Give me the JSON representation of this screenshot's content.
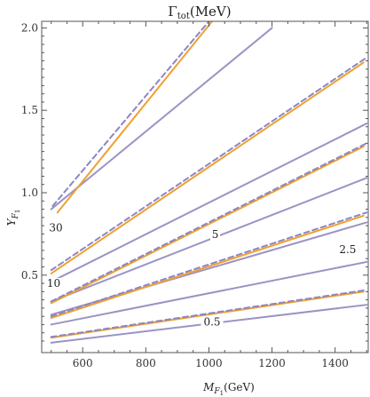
{
  "chart_data": {
    "type": "line",
    "title": "Γtot(MeV)",
    "title_parts": {
      "symbol": "Γ",
      "subscript": "tot",
      "unit": "(MeV)"
    },
    "xlabel": "MF1(GeV)",
    "xlabel_parts": {
      "symbol": "M",
      "subscript": "F",
      "subsubscript": "1",
      "unit": "(GeV)"
    },
    "ylabel": "YF1",
    "ylabel_parts": {
      "symbol": "Y",
      "subscript": "F",
      "subsubscript": "1"
    },
    "xlim": [
      470,
      1505
    ],
    "ylim": [
      0.03,
      2.04
    ],
    "xticks": [
      "600",
      "800",
      "1000",
      "1200",
      "1400"
    ],
    "yticks": [
      "0.5",
      "1.0",
      "1.5",
      "2.0"
    ],
    "grid": false,
    "colors": {
      "contour": "#9b93c4",
      "orange": "#f0a030",
      "dashed": "#8c86c4",
      "frame": "#555555"
    },
    "contours": [
      {
        "x": [
          500,
          1200
        ],
        "y": [
          0.9,
          2.0
        ]
      },
      {
        "x": [
          500,
          1500
        ],
        "y": [
          0.46,
          1.42
        ]
      },
      {
        "x": [
          500,
          1500
        ],
        "y": [
          0.34,
          1.09
        ]
      },
      {
        "x": [
          500,
          1500
        ],
        "y": [
          0.26,
          0.82
        ]
      },
      {
        "x": [
          500,
          1500
        ],
        "y": [
          0.2,
          0.58
        ]
      },
      {
        "x": [
          500,
          1500
        ],
        "y": [
          0.09,
          0.32
        ]
      }
    ],
    "orange_solid": [
      {
        "x": [
          520,
          1010
        ],
        "y": [
          0.88,
          2.04
        ]
      },
      {
        "x": [
          500,
          1490
        ],
        "y": [
          0.51,
          1.79
        ]
      },
      {
        "x": [
          500,
          1490
        ],
        "y": [
          0.33,
          1.28
        ]
      },
      {
        "x": [
          500,
          1490
        ],
        "y": [
          0.24,
          0.86
        ]
      },
      {
        "x": [
          500,
          1490
        ],
        "y": [
          0.12,
          0.4
        ]
      }
    ],
    "orange_dashed": [
      {
        "x": [
          505,
          1000
        ],
        "y": [
          0.92,
          2.04
        ]
      },
      {
        "x": [
          500,
          1500
        ],
        "y": [
          0.53,
          1.82
        ]
      },
      {
        "x": [
          500,
          1500
        ],
        "y": [
          0.34,
          1.3
        ]
      },
      {
        "x": [
          500,
          1500
        ],
        "y": [
          0.25,
          0.88
        ]
      },
      {
        "x": [
          500,
          1500
        ],
        "y": [
          0.125,
          0.41
        ]
      }
    ],
    "contour_labels": [
      {
        "text": "30",
        "x": 515,
        "y": 0.77
      },
      {
        "text": "10",
        "x": 508,
        "y": 0.435
      },
      {
        "text": "5",
        "x": 1020,
        "y": 0.73
      },
      {
        "text": "2.5",
        "x": 1440,
        "y": 0.64
      },
      {
        "text": "0.5",
        "x": 1010,
        "y": 0.2
      }
    ]
  }
}
